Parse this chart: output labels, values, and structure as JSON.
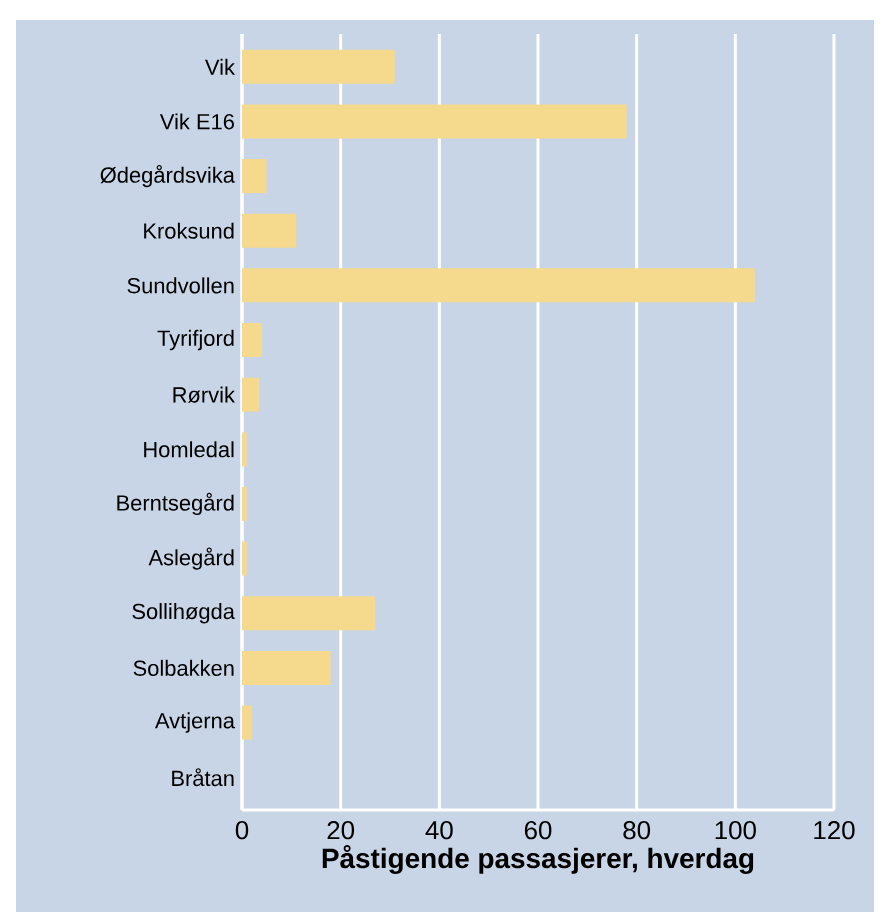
{
  "chart_data": {
    "type": "bar",
    "orientation": "horizontal",
    "xlabel": "Påstigende passasjerer, hverdag",
    "categories": [
      "Vik",
      "Vik E16",
      "Ødegårdsvika",
      "Kroksund",
      "Sundvollen",
      "Tyrifjord",
      "Rørvik",
      "Homledal",
      "Berntsegård",
      "Aslegård",
      "Sollihøgda",
      "Solbakken",
      "Avtjerna",
      "Bråtan"
    ],
    "values": [
      31,
      78,
      5,
      11,
      104,
      4,
      3.5,
      1,
      1,
      1,
      27,
      18,
      2,
      null
    ],
    "color": "#f5d98c",
    "xlim": [
      0,
      120
    ],
    "xticks": [
      0,
      20,
      40,
      60,
      80,
      100,
      120
    ],
    "grid": "x"
  }
}
